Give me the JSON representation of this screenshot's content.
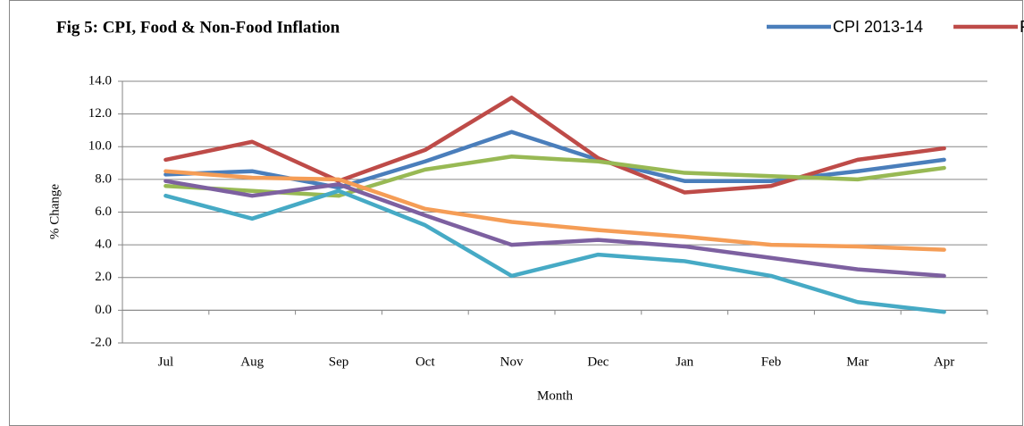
{
  "chart_data": {
    "type": "line",
    "title": "Fig 5: CPI, Food & Non-Food Inflation",
    "x_label": "Month",
    "y_label": "% Change",
    "categories": [
      "Jul",
      "Aug",
      "Sep",
      "Oct",
      "Nov",
      "Dec",
      "Jan",
      "Feb",
      "Mar",
      "Apr"
    ],
    "series": [
      {
        "name": "CPI 2013-14",
        "color": "#4a7ebb",
        "values": [
          8.3,
          8.5,
          7.5,
          9.1,
          10.9,
          9.2,
          7.9,
          7.9,
          8.5,
          9.2
        ]
      },
      {
        "name": "Food",
        "color": "#be4b48",
        "values": [
          9.2,
          10.3,
          7.9,
          9.8,
          13.0,
          9.3,
          7.2,
          7.6,
          9.2,
          9.9
        ]
      },
      {
        "color": "#98b954",
        "values": [
          7.6,
          7.3,
          7.0,
          8.6,
          9.4,
          9.1,
          8.4,
          8.2,
          8.0,
          8.7
        ]
      },
      {
        "color": "#7d60a0",
        "values": [
          7.9,
          7.0,
          7.7,
          5.8,
          4.0,
          4.3,
          3.9,
          3.2,
          2.5,
          2.1
        ]
      },
      {
        "color": "#46aac5",
        "values": [
          7.0,
          5.6,
          7.3,
          5.2,
          2.1,
          3.4,
          3.0,
          2.1,
          0.5,
          -0.1
        ]
      },
      {
        "color": "#f59d56",
        "values": [
          8.5,
          8.1,
          8.0,
          6.2,
          5.4,
          4.9,
          4.5,
          4.0,
          3.9,
          3.7
        ]
      }
    ],
    "ylim": [
      -2,
      14
    ],
    "yticks": [
      {
        "value": -2,
        "label": "-2.0"
      },
      {
        "value": 0,
        "label": "0.0"
      },
      {
        "value": 2,
        "label": "2.0"
      },
      {
        "value": 4,
        "label": "4.0"
      },
      {
        "value": 6,
        "label": "6.0"
      },
      {
        "value": 8,
        "label": "8.0"
      },
      {
        "value": 10,
        "label": "10.0"
      },
      {
        "value": 12,
        "label": "12.0"
      },
      {
        "value": 14,
        "label": "14.0"
      }
    ],
    "grid": true,
    "legend": "top-right"
  }
}
